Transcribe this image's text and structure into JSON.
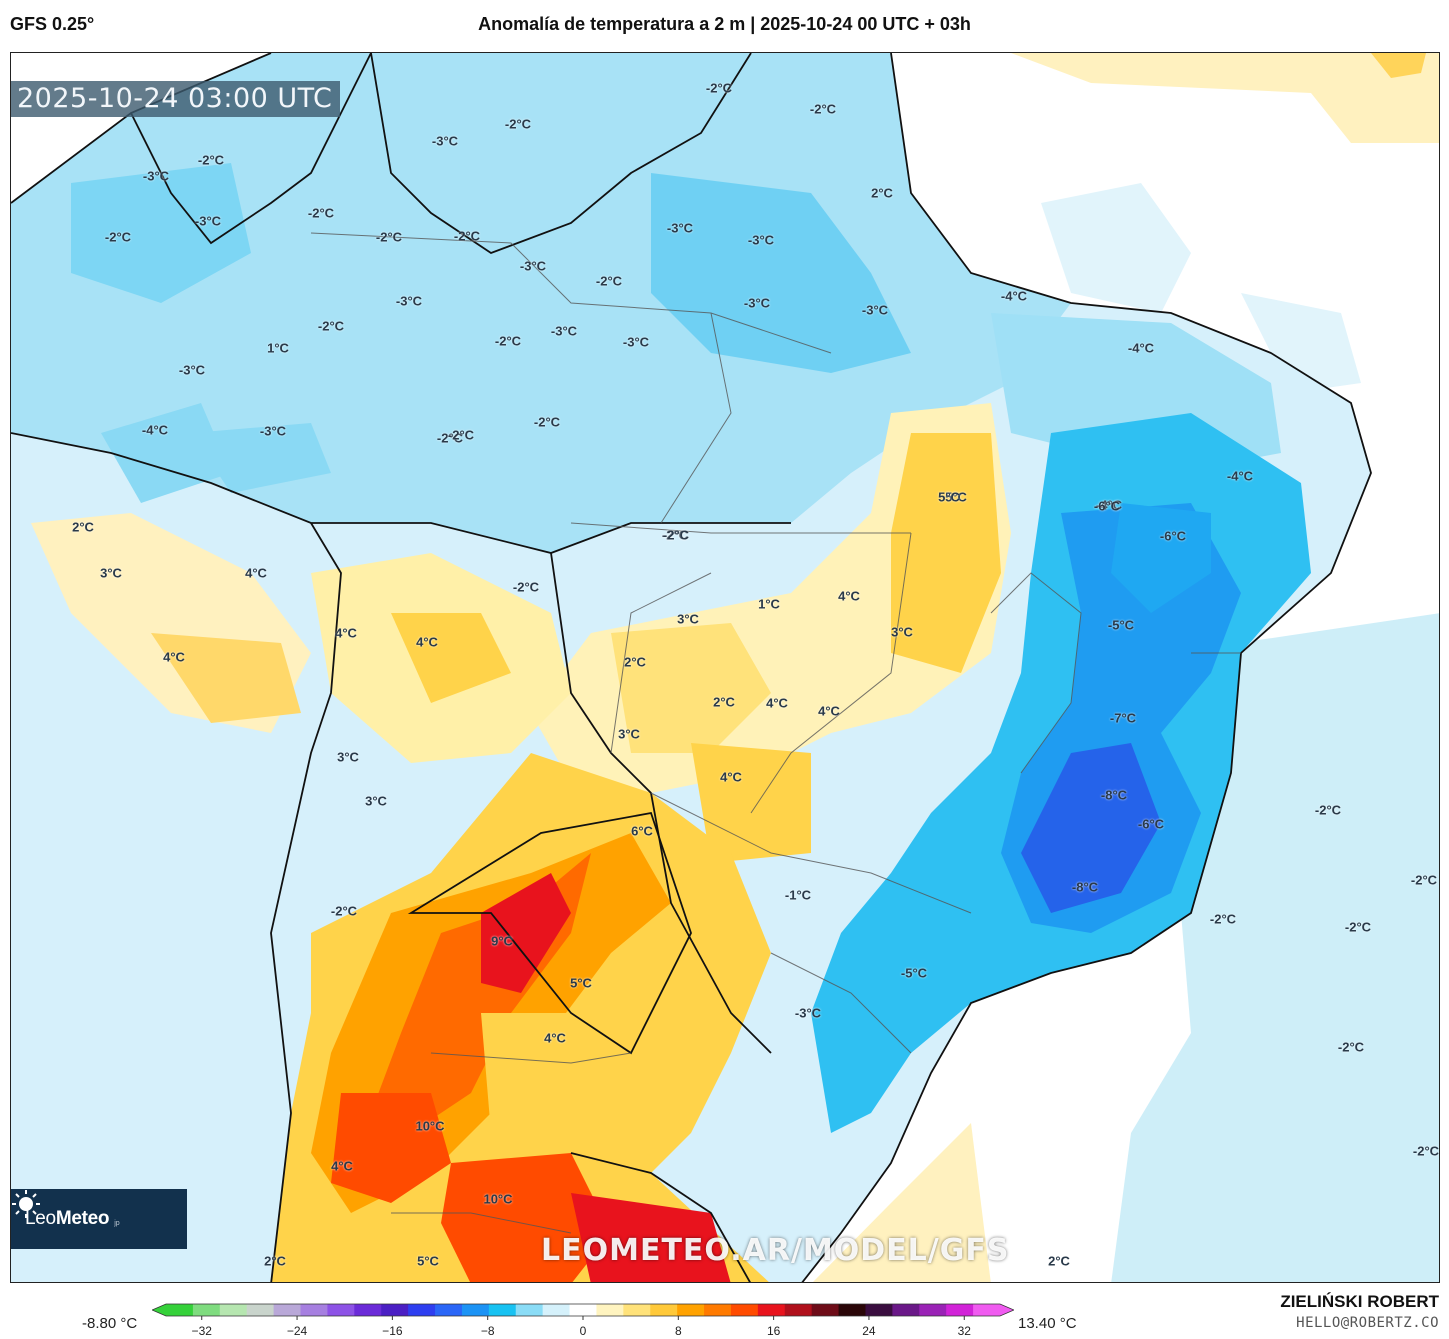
{
  "header": {
    "model": "GFS 0.25°",
    "title": "Anomalía de temperatura a 2 m | 2025-10-24 00 UTC + 03h"
  },
  "map": {
    "timestamp": "2025-10-24 03:00 UTC",
    "watermark": "LEOMETEO.AR/MODEL/GFS",
    "logo": {
      "name_bold": "Leo",
      "name_rest": "Meteo",
      "suffix": "jp"
    },
    "labels": [
      "-2°C",
      "-2°C",
      "-3°C",
      "-2°C",
      "-3°C",
      "-2°C",
      "-3°C",
      "-2°C",
      "2°C",
      "-2°C",
      "-2°C",
      "-2°C",
      "-3°C",
      "-2°C",
      "-3°C",
      "-3°C",
      "-3°C",
      "-3°C",
      "-4°C",
      "-4°C",
      "-4°C",
      "-3°C",
      "-2°C",
      "-2°C",
      "1°C",
      "-3°C",
      "-3°C",
      "-3°C",
      "-3°C",
      "-2°C",
      "-2°C",
      "-2°C",
      "-4°C",
      "-4°C",
      "-2°C",
      "5°C",
      "-6°C",
      "-6°C",
      "2°C",
      "3°C",
      "4°C",
      "4°C",
      "-2°C",
      "-2°C",
      "3°C",
      "4°C",
      "4°C",
      "5°C",
      "4°C",
      "2°C",
      "1°C",
      "3°C",
      "-5°C",
      "2°C",
      "4°C",
      "4°C",
      "3°C",
      "-7°C",
      "3°C",
      "4°C",
      "3°C",
      "-8°C",
      "6°C",
      "-6°C",
      "-2°C",
      "-2°C",
      "-8°C",
      "-1°C",
      "-2°C",
      "-2°C",
      "-2°C",
      "9°C",
      "5°C",
      "-5°C",
      "-3°C",
      "4°C",
      "-2°C",
      "10°C",
      "4°C",
      "-2°C",
      "10°C",
      "5°C",
      "2°C",
      "2°C"
    ]
  },
  "colorbar": {
    "min_label": "-8.80 °C",
    "max_label": "13.40 °C",
    "ticks": [
      "−32",
      "−24",
      "−16",
      "−8",
      "0",
      "8",
      "16",
      "24",
      "32"
    ],
    "tick_values": [
      -32,
      -24,
      -16,
      -8,
      0,
      8,
      16,
      24,
      32
    ],
    "range": [
      -35,
      35
    ],
    "colors": [
      "#35d13a",
      "#7fdc7f",
      "#b6e6b0",
      "#c9d4cc",
      "#b9a8d8",
      "#a67fe0",
      "#8d52e6",
      "#6b2bd8",
      "#4b1fc4",
      "#2e3ef0",
      "#2a66f7",
      "#1c93f5",
      "#18c2f2",
      "#8adcf6",
      "#d5f1fb",
      "#ffffff",
      "#fff4c0",
      "#ffe27a",
      "#ffc93a",
      "#ffa200",
      "#ff7a00",
      "#ff4b00",
      "#e8131d",
      "#b0101c",
      "#6e0c18",
      "#2a0608",
      "#3a0d3f",
      "#6a1888",
      "#9a22b6",
      "#d123d8",
      "#f05bf0"
    ]
  },
  "author": {
    "name": "ZIELIŃSKI ROBERT",
    "email": "HELLO@ROBERTZ.CO"
  }
}
